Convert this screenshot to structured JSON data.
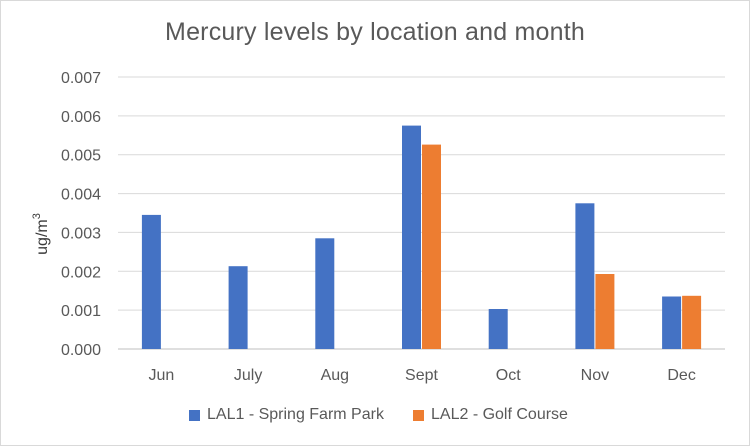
{
  "chart_data": {
    "type": "bar",
    "title": "Mercury levels by location and month",
    "ylabel": "ug/m",
    "ylabel_superscript": "3",
    "xlabel": "",
    "categories": [
      "Jun",
      "July",
      "Aug",
      "Sept",
      "Oct",
      "Nov",
      "Dec"
    ],
    "ylim": [
      0,
      0.007
    ],
    "yticks": [
      "0.000",
      "0.001",
      "0.002",
      "0.003",
      "0.004",
      "0.005",
      "0.006",
      "0.007"
    ],
    "grid": true,
    "legend_position": "bottom",
    "series": [
      {
        "name": "LAL1 - Spring Farm Park",
        "color": "#4472c4",
        "values": [
          0.00345,
          0.00213,
          0.00285,
          0.00575,
          0.00103,
          0.00375,
          0.00135
        ]
      },
      {
        "name": "LAL2 - Golf Course",
        "color": "#ed7d31",
        "values": [
          null,
          null,
          null,
          0.00526,
          null,
          0.00193,
          0.00137
        ]
      }
    ]
  }
}
